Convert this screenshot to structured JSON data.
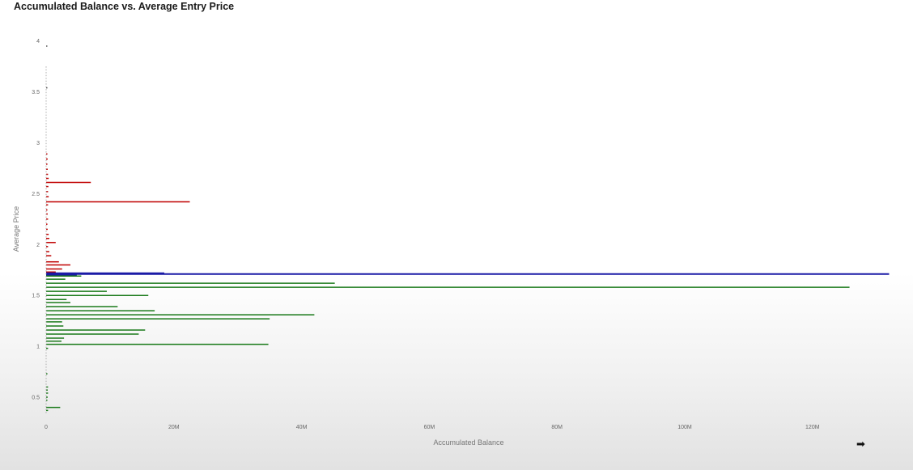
{
  "title": "Accumulated Balance vs. Average Entry Price",
  "icons": {
    "corner": "export-arrow-icon"
  },
  "colors": {
    "above_highlight": "#c00000",
    "highlight": "#1a1aa6",
    "below_highlight": "#1a7a1a",
    "tiny_marker": "#555555"
  },
  "chart_data": {
    "type": "bar",
    "orientation": "horizontal",
    "title": "Accumulated Balance vs. Average Entry Price",
    "xlabel": "Accumulated Balance",
    "ylabel": "Average Price",
    "xlim": [
      0,
      132000000
    ],
    "ylim": [
      0.35,
      4.05
    ],
    "x_ticks": [
      {
        "value": 0,
        "label": "0"
      },
      {
        "value": 20000000,
        "label": "20M"
      },
      {
        "value": 40000000,
        "label": "40M"
      },
      {
        "value": 60000000,
        "label": "60M"
      },
      {
        "value": 80000000,
        "label": "80M"
      },
      {
        "value": 100000000,
        "label": "100M"
      },
      {
        "value": 120000000,
        "label": "120M"
      }
    ],
    "y_ticks": [
      {
        "value": 0.5,
        "label": "0.5"
      },
      {
        "value": 1,
        "label": "1"
      },
      {
        "value": 1.5,
        "label": "1.5"
      },
      {
        "value": 2,
        "label": "2"
      },
      {
        "value": 2.5,
        "label": "2.5"
      },
      {
        "value": 3,
        "label": "3"
      },
      {
        "value": 3.5,
        "label": "3.5"
      },
      {
        "value": 4,
        "label": "4"
      }
    ],
    "grid": false,
    "legend": "none",
    "series": [
      {
        "group": "above",
        "color": "#c00000",
        "points": [
          {
            "price": 2.89,
            "balance": 200000
          },
          {
            "price": 2.84,
            "balance": 250000
          },
          {
            "price": 2.79,
            "balance": 200000
          },
          {
            "price": 2.74,
            "balance": 250000
          },
          {
            "price": 2.69,
            "balance": 300000
          },
          {
            "price": 2.65,
            "balance": 400000
          },
          {
            "price": 2.61,
            "balance": 7000000
          },
          {
            "price": 2.57,
            "balance": 350000
          },
          {
            "price": 2.52,
            "balance": 300000
          },
          {
            "price": 2.47,
            "balance": 400000
          },
          {
            "price": 2.42,
            "balance": 22500000
          },
          {
            "price": 2.39,
            "balance": 300000
          },
          {
            "price": 2.34,
            "balance": 200000
          },
          {
            "price": 2.3,
            "balance": 250000
          },
          {
            "price": 2.25,
            "balance": 300000
          },
          {
            "price": 2.2,
            "balance": 200000
          },
          {
            "price": 2.15,
            "balance": 250000
          },
          {
            "price": 2.1,
            "balance": 400000
          },
          {
            "price": 2.06,
            "balance": 500000
          },
          {
            "price": 2.02,
            "balance": 1500000
          },
          {
            "price": 1.98,
            "balance": 300000
          },
          {
            "price": 1.93,
            "balance": 500000
          },
          {
            "price": 1.89,
            "balance": 800000
          },
          {
            "price": 1.83,
            "balance": 2000000
          },
          {
            "price": 1.8,
            "balance": 3800000
          },
          {
            "price": 1.76,
            "balance": 2500000
          },
          {
            "price": 1.73,
            "balance": 1500000
          }
        ]
      },
      {
        "group": "highlight",
        "color": "#1a1aa6",
        "points": [
          {
            "price": 1.71,
            "balance": 132000000
          },
          {
            "price": 1.72,
            "balance": 18500000
          },
          {
            "price": 1.7,
            "balance": 4800000
          }
        ]
      },
      {
        "group": "below",
        "color": "#1a7a1a",
        "points": [
          {
            "price": 1.69,
            "balance": 5500000
          },
          {
            "price": 1.66,
            "balance": 3000000
          },
          {
            "price": 1.62,
            "balance": 45200000
          },
          {
            "price": 1.58,
            "balance": 125800000
          },
          {
            "price": 1.54,
            "balance": 9500000
          },
          {
            "price": 1.5,
            "balance": 16000000
          },
          {
            "price": 1.46,
            "balance": 3200000
          },
          {
            "price": 1.43,
            "balance": 3800000
          },
          {
            "price": 1.39,
            "balance": 11200000
          },
          {
            "price": 1.35,
            "balance": 17000000
          },
          {
            "price": 1.31,
            "balance": 42000000
          },
          {
            "price": 1.27,
            "balance": 35000000
          },
          {
            "price": 1.24,
            "balance": 2500000
          },
          {
            "price": 1.2,
            "balance": 2700000
          },
          {
            "price": 1.16,
            "balance": 15500000
          },
          {
            "price": 1.12,
            "balance": 14500000
          },
          {
            "price": 1.08,
            "balance": 2800000
          },
          {
            "price": 1.05,
            "balance": 2400000
          },
          {
            "price": 1.02,
            "balance": 34800000
          },
          {
            "price": 0.98,
            "balance": 300000
          },
          {
            "price": 0.73,
            "balance": 200000
          },
          {
            "price": 0.6,
            "balance": 300000
          },
          {
            "price": 0.57,
            "balance": 250000
          },
          {
            "price": 0.54,
            "balance": 300000
          },
          {
            "price": 0.5,
            "balance": 250000
          },
          {
            "price": 0.47,
            "balance": 200000
          },
          {
            "price": 0.4,
            "balance": 2200000
          },
          {
            "price": 0.37,
            "balance": 300000
          }
        ]
      },
      {
        "group": "tiny-markers",
        "color": "#555555",
        "points": [
          {
            "price": 3.95,
            "balance": 150000
          },
          {
            "price": 3.54,
            "balance": 200000
          }
        ]
      }
    ]
  }
}
